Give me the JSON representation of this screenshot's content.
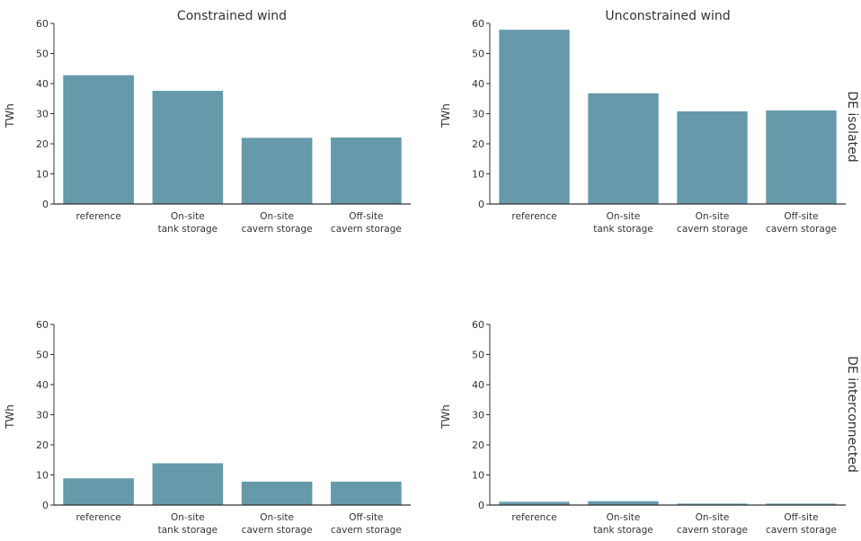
{
  "bar_color": "#6699aa",
  "axis_color": "#333333",
  "col_titles": [
    "Constrained wind",
    "Unconstrained wind"
  ],
  "row_labels": [
    "DE isolated",
    "DE interconnected"
  ],
  "chart_data": [
    {
      "type": "bar",
      "title": "Constrained wind",
      "row": "DE isolated",
      "ylabel": "TWh",
      "ylim": [
        0,
        60
      ],
      "yticks": [
        0,
        10,
        20,
        30,
        40,
        50,
        60
      ],
      "categories": [
        [
          "reference"
        ],
        [
          "On-site",
          "tank storage"
        ],
        [
          "On-site",
          "cavern storage"
        ],
        [
          "Off-site",
          "cavern storage"
        ]
      ],
      "values": [
        42.9,
        37.7,
        22.1,
        22.2
      ]
    },
    {
      "type": "bar",
      "title": "Unconstrained wind",
      "row": "DE isolated",
      "ylabel": "TWh",
      "ylim": [
        0,
        60
      ],
      "yticks": [
        0,
        10,
        20,
        30,
        40,
        50,
        60
      ],
      "categories": [
        [
          "reference"
        ],
        [
          "On-site",
          "tank storage"
        ],
        [
          "On-site",
          "cavern storage"
        ],
        [
          "Off-site",
          "cavern storage"
        ]
      ],
      "values": [
        58.0,
        36.9,
        30.9,
        31.2
      ]
    },
    {
      "type": "bar",
      "title": "",
      "row": "DE interconnected",
      "ylabel": "TWh",
      "ylim": [
        0,
        60
      ],
      "yticks": [
        0,
        10,
        20,
        30,
        40,
        50,
        60
      ],
      "categories": [
        [
          "reference"
        ],
        [
          "On-site",
          "tank storage"
        ],
        [
          "On-site",
          "cavern storage"
        ],
        [
          "Off-site",
          "cavern storage"
        ]
      ],
      "values": [
        9.0,
        14.0,
        7.9,
        7.9
      ]
    },
    {
      "type": "bar",
      "title": "",
      "row": "DE interconnected",
      "ylabel": "TWh",
      "ylim": [
        0,
        60
      ],
      "yticks": [
        0,
        10,
        20,
        30,
        40,
        50,
        60
      ],
      "categories": [
        [
          "reference"
        ],
        [
          "On-site",
          "tank storage"
        ],
        [
          "On-site",
          "cavern storage"
        ],
        [
          "Off-site",
          "cavern storage"
        ]
      ],
      "values": [
        1.2,
        1.4,
        0.6,
        0.6
      ]
    }
  ]
}
